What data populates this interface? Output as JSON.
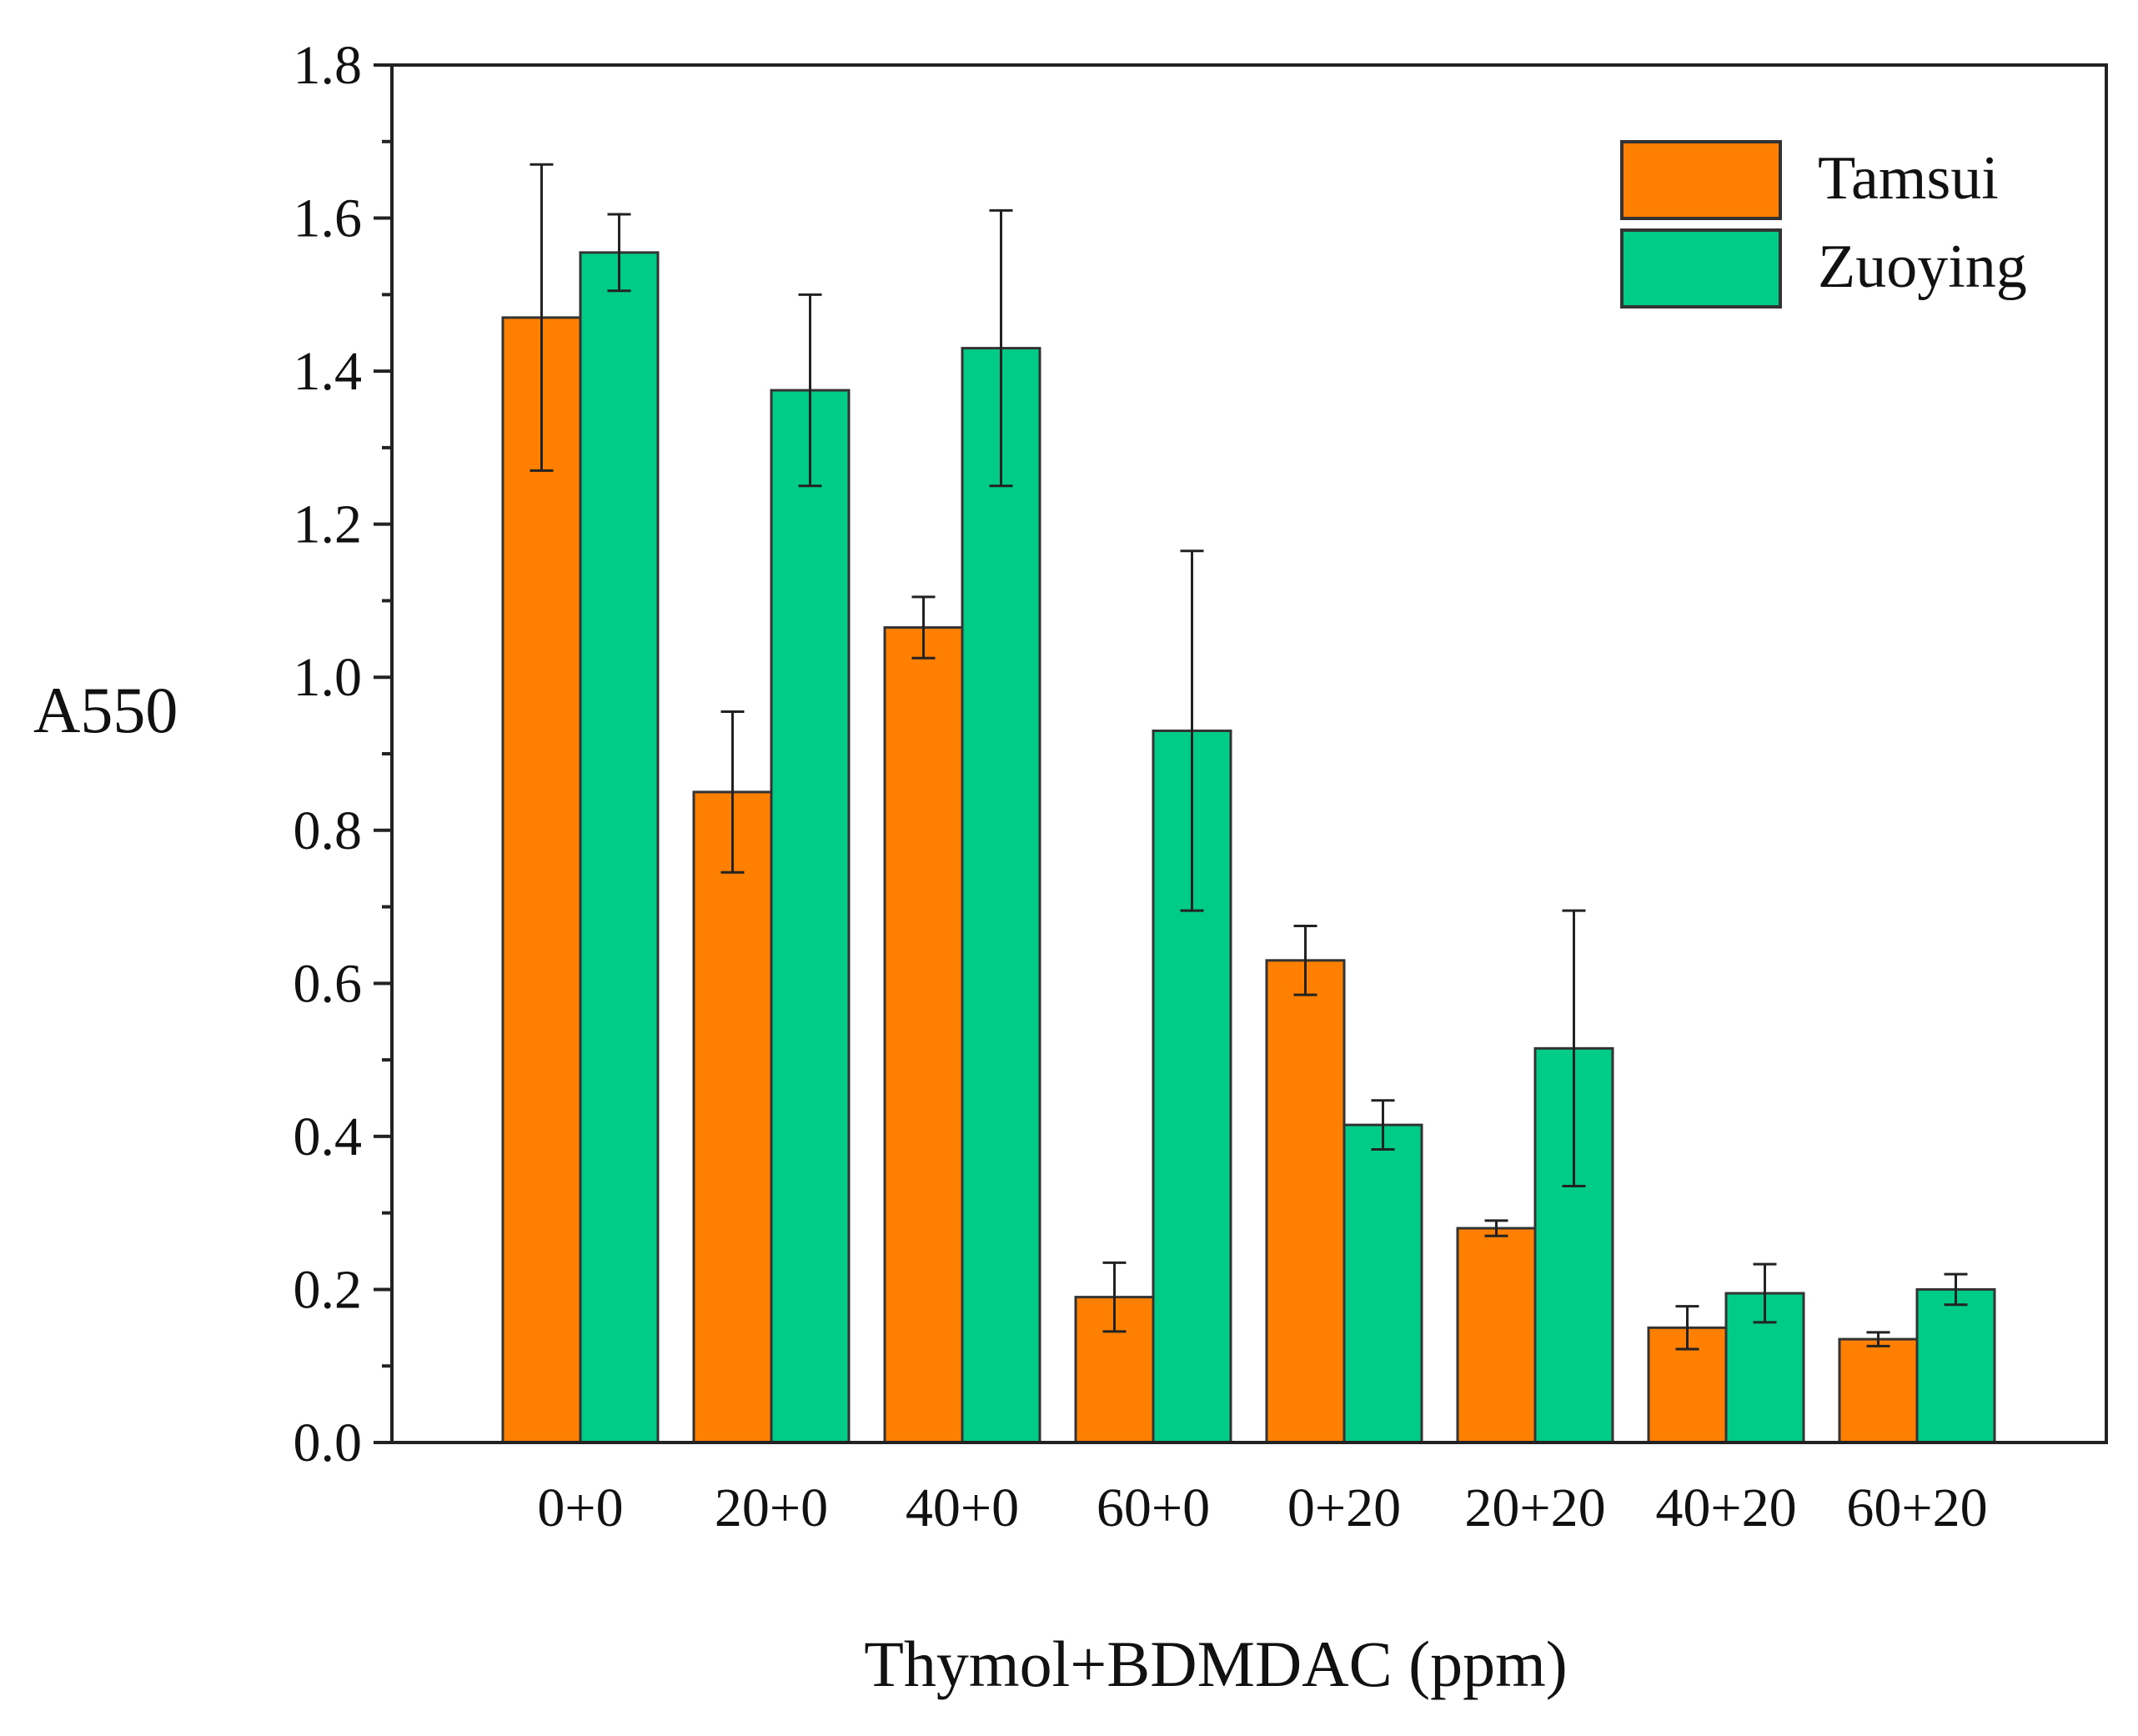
{
  "chart_data": {
    "type": "bar",
    "title": "",
    "xlabel": "Thymol+BDMDAC (ppm)",
    "ylabel": "A550",
    "ylim": [
      0,
      1.8
    ],
    "yticks": [
      "0.0",
      "0.2",
      "0.4",
      "0.6",
      "0.8",
      "1.0",
      "1.2",
      "1.4",
      "1.6",
      "1.8"
    ],
    "grid": false,
    "legend_position": "top-right",
    "categories": [
      "0+0",
      "20+0",
      "40+0",
      "60+0",
      "0+20",
      "20+20",
      "40+20",
      "60+20"
    ],
    "series": [
      {
        "name": "Tamsui",
        "color": "#FF7F00",
        "values": [
          1.47,
          0.85,
          1.065,
          0.19,
          0.63,
          0.28,
          0.15,
          0.135
        ],
        "errors": [
          0.2,
          0.105,
          0.04,
          0.045,
          0.045,
          0.01,
          0.028,
          0.009
        ]
      },
      {
        "name": "Zuoying",
        "color": "#00CC88",
        "values": [
          1.555,
          1.375,
          1.43,
          0.93,
          0.415,
          0.515,
          0.195,
          0.2
        ],
        "errors": [
          0.05,
          0.125,
          0.18,
          0.235,
          0.032,
          0.18,
          0.038,
          0.02
        ]
      }
    ]
  }
}
